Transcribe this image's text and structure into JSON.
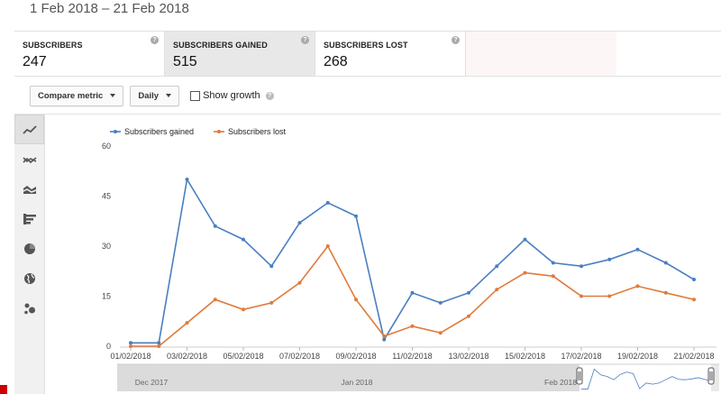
{
  "header": {
    "date_range": "1 Feb 2018 – 21 Feb 2018"
  },
  "metrics": [
    {
      "label": "SUBSCRIBERS",
      "value": "247",
      "selected": false
    },
    {
      "label": "SUBSCRIBERS GAINED",
      "value": "515",
      "selected": true
    },
    {
      "label": "SUBSCRIBERS LOST",
      "value": "268",
      "selected": false
    }
  ],
  "toolbar": {
    "compare_metric_label": "Compare metric",
    "period_label": "Daily",
    "show_growth_label": "Show growth",
    "show_growth_checked": false
  },
  "sidebar": {
    "icons": [
      "line-chart-icon",
      "multi-line-chart-icon",
      "stacked-area-chart-icon",
      "bar-chart-icon",
      "pie-chart-icon",
      "globe-map-icon",
      "bubble-chart-icon"
    ],
    "active_index": 0
  },
  "colors": {
    "gained": "#4a7fc1",
    "lost": "#e07a3a"
  },
  "chart_data": {
    "type": "line",
    "x": [
      "01/02/2018",
      "02/02/2018",
      "03/02/2018",
      "04/02/2018",
      "05/02/2018",
      "06/02/2018",
      "07/02/2018",
      "08/02/2018",
      "09/02/2018",
      "10/02/2018",
      "11/02/2018",
      "12/02/2018",
      "13/02/2018",
      "14/02/2018",
      "15/02/2018",
      "16/02/2018",
      "17/02/2018",
      "18/02/2018",
      "19/02/2018",
      "20/02/2018",
      "21/02/2018"
    ],
    "x_tick_labels": [
      "01/02/2018",
      "03/02/2018",
      "05/02/2018",
      "07/02/2018",
      "09/02/2018",
      "11/02/2018",
      "13/02/2018",
      "15/02/2018",
      "17/02/2018",
      "19/02/2018",
      "21/02/2018"
    ],
    "series": [
      {
        "name": "Subscribers gained",
        "color": "#4a7fc1",
        "values": [
          1,
          1,
          50,
          36,
          32,
          24,
          37,
          43,
          39,
          2,
          16,
          13,
          16,
          24,
          32,
          25,
          24,
          26,
          29,
          25,
          20
        ]
      },
      {
        "name": "Subscribers lost",
        "color": "#e07a3a",
        "values": [
          0,
          0,
          7,
          14,
          11,
          13,
          19,
          30,
          14,
          3,
          6,
          4,
          9,
          17,
          22,
          21,
          15,
          15,
          18,
          16,
          14
        ]
      }
    ],
    "y_ticks": [
      0,
      15,
      30,
      45,
      60
    ],
    "ylim": [
      0,
      60
    ],
    "legend": "top-left",
    "grid": false,
    "navigator_labels": [
      "Dec 2017",
      "Jan 2018",
      "Feb 2018"
    ]
  }
}
